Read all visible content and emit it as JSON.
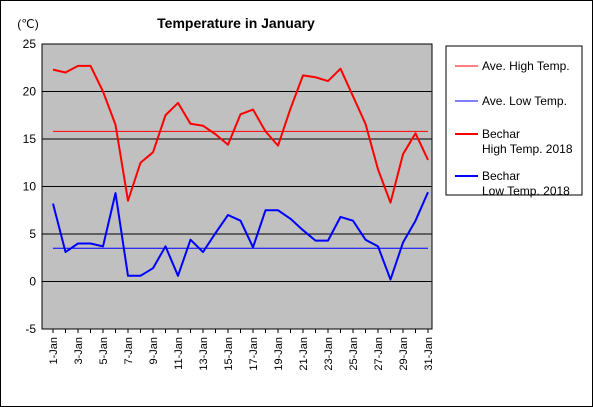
{
  "chart_data": {
    "type": "line",
    "title": "Temperature in January",
    "unit_label": "(℃)",
    "ylim": [
      -5,
      25
    ],
    "yticks": [
      -5,
      0,
      5,
      10,
      15,
      20,
      25
    ],
    "grid": true,
    "legend_position": "right",
    "x": [
      "1-Jan",
      "2-Jan",
      "3-Jan",
      "4-Jan",
      "5-Jan",
      "6-Jan",
      "7-Jan",
      "8-Jan",
      "9-Jan",
      "10-Jan",
      "11-Jan",
      "12-Jan",
      "13-Jan",
      "14-Jan",
      "15-Jan",
      "16-Jan",
      "17-Jan",
      "18-Jan",
      "19-Jan",
      "20-Jan",
      "21-Jan",
      "22-Jan",
      "23-Jan",
      "24-Jan",
      "25-Jan",
      "26-Jan",
      "27-Jan",
      "28-Jan",
      "29-Jan",
      "30-Jan",
      "31-Jan"
    ],
    "xtick_labels": [
      "1-Jan",
      "3-Jan",
      "5-Jan",
      "7-Jan",
      "9-Jan",
      "11-Jan",
      "13-Jan",
      "15-Jan",
      "17-Jan",
      "19-Jan",
      "21-Jan",
      "23-Jan",
      "25-Jan",
      "27-Jan",
      "29-Jan",
      "31-Jan"
    ],
    "series": [
      {
        "name": "Ave. High Temp.",
        "color": "#ff0000",
        "width": 1,
        "values": [
          15.8,
          15.8,
          15.8,
          15.8,
          15.8,
          15.8,
          15.8,
          15.8,
          15.8,
          15.8,
          15.8,
          15.8,
          15.8,
          15.8,
          15.8,
          15.8,
          15.8,
          15.8,
          15.8,
          15.8,
          15.8,
          15.8,
          15.8,
          15.8,
          15.8,
          15.8,
          15.8,
          15.8,
          15.8,
          15.8,
          15.8
        ]
      },
      {
        "name": "Ave. Low Temp.",
        "color": "#0000ff",
        "width": 1,
        "values": [
          3.5,
          3.5,
          3.5,
          3.5,
          3.5,
          3.5,
          3.5,
          3.5,
          3.5,
          3.5,
          3.5,
          3.5,
          3.5,
          3.5,
          3.5,
          3.5,
          3.5,
          3.5,
          3.5,
          3.5,
          3.5,
          3.5,
          3.5,
          3.5,
          3.5,
          3.5,
          3.5,
          3.5,
          3.5,
          3.5,
          3.5
        ]
      },
      {
        "name": "Bechar\nHigh Temp. 2018",
        "color": "#ff0000",
        "width": 2,
        "values": [
          22.3,
          22.0,
          22.7,
          22.7,
          20.0,
          16.5,
          8.5,
          12.5,
          13.6,
          17.5,
          18.8,
          16.6,
          16.4,
          15.5,
          14.4,
          17.6,
          18.1,
          15.8,
          14.3,
          18.2,
          21.7,
          21.5,
          21.1,
          22.4,
          19.5,
          16.6,
          11.8,
          8.3,
          13.4,
          15.6,
          12.8
        ]
      },
      {
        "name": "Bechar\nLow Temp. 2018",
        "color": "#0000ff",
        "width": 2,
        "values": [
          8.2,
          3.1,
          4.0,
          4.0,
          3.7,
          9.3,
          0.6,
          0.6,
          1.4,
          3.7,
          0.6,
          4.4,
          3.1,
          5.1,
          7.0,
          6.4,
          3.6,
          7.5,
          7.5,
          6.6,
          5.4,
          4.3,
          4.3,
          6.8,
          6.4,
          4.4,
          3.7,
          0.2,
          4.1,
          6.4,
          9.4
        ]
      }
    ]
  }
}
